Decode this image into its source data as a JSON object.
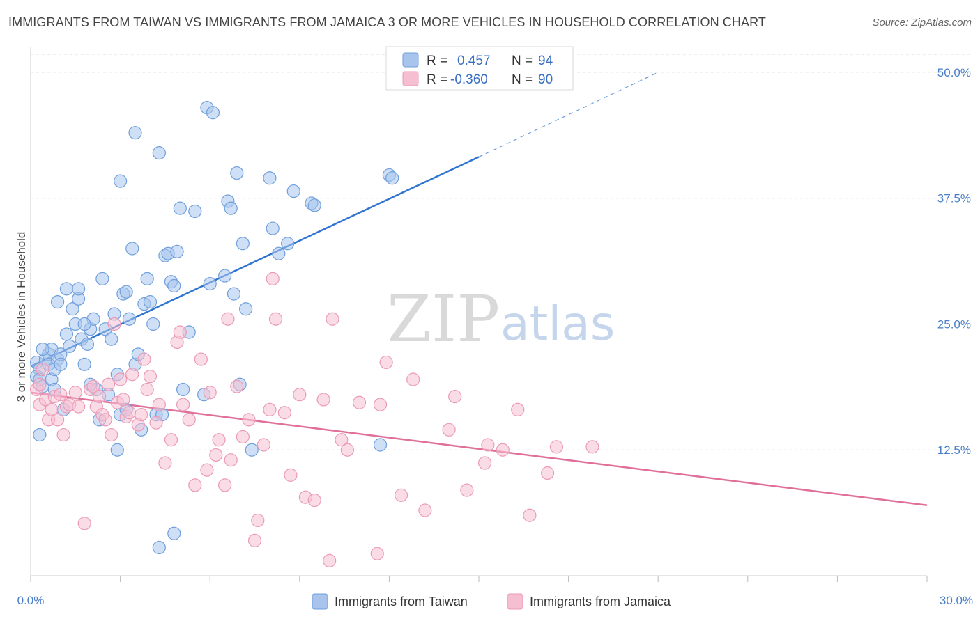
{
  "title": "IMMIGRANTS FROM TAIWAN VS IMMIGRANTS FROM JAMAICA 3 OR MORE VEHICLES IN HOUSEHOLD CORRELATION CHART",
  "source": "Source: ZipAtlas.com",
  "watermark": {
    "zip": "ZIP",
    "atlas": "atlas"
  },
  "legend": {
    "rows": [
      {
        "r_label": "R =",
        "r_value": "0.457",
        "n_label": "N =",
        "n_value": "94"
      },
      {
        "r_label": "R =",
        "r_value": "-0.360",
        "n_label": "N =",
        "n_value": "90"
      }
    ]
  },
  "colors": {
    "taiwan_fill": "#a8c4ec",
    "taiwan_stroke": "#6f9fdc",
    "taiwan_line": "#2f74d0",
    "jamaica_fill": "#f6bfd1",
    "jamaica_stroke": "#eb9ab6",
    "jamaica_line": "#e0709a",
    "grid": "#dcdcdc",
    "axis_text": "#4a7ec9"
  },
  "chart_data": {
    "type": "scatter",
    "title": "IMMIGRANTS FROM TAIWAN VS IMMIGRANTS FROM JAMAICA 3 OR MORE VEHICLES IN HOUSEHOLD CORRELATION CHART",
    "xlabel": "",
    "ylabel": "3 or more Vehicles in Household",
    "xlim": [
      0,
      30
    ],
    "ylim": [
      0,
      52
    ],
    "x_tick_labels": [
      "0.0%",
      "30.0%"
    ],
    "y_ticks": [
      12.5,
      25.0,
      37.5,
      50.0
    ],
    "y_tick_labels": [
      "12.5%",
      "25.0%",
      "37.5%",
      "50.0%"
    ],
    "grid": "horizontal dashed",
    "legend_position": "top-center",
    "series": [
      {
        "name": "Immigrants from Taiwan",
        "r": 0.457,
        "n": 94,
        "trend": {
          "x": [
            0.0,
            15.0
          ],
          "y": [
            20.8,
            41.6
          ],
          "dashed_to": [
            21.0,
            50.0
          ]
        },
        "points": [
          [
            0.2,
            21.2
          ],
          [
            0.3,
            20.5
          ],
          [
            0.2,
            19.8
          ],
          [
            0.3,
            19.5
          ],
          [
            0.4,
            18.8
          ],
          [
            0.3,
            14.0
          ],
          [
            0.5,
            21.5
          ],
          [
            0.6,
            22.0
          ],
          [
            0.7,
            22.5
          ],
          [
            0.6,
            21.0
          ],
          [
            0.7,
            19.5
          ],
          [
            0.8,
            18.5
          ],
          [
            0.9,
            21.5
          ],
          [
            0.8,
            20.5
          ],
          [
            1.0,
            22.0
          ],
          [
            1.0,
            21.0
          ],
          [
            1.1,
            16.5
          ],
          [
            1.2,
            24.0
          ],
          [
            1.3,
            22.8
          ],
          [
            1.4,
            26.5
          ],
          [
            1.5,
            25.0
          ],
          [
            1.6,
            27.5
          ],
          [
            1.7,
            23.5
          ],
          [
            1.8,
            21.0
          ],
          [
            1.9,
            23.0
          ],
          [
            2.0,
            24.5
          ],
          [
            2.1,
            25.5
          ],
          [
            2.2,
            18.5
          ],
          [
            2.3,
            15.5
          ],
          [
            2.4,
            29.5
          ],
          [
            2.5,
            24.5
          ],
          [
            2.6,
            18.0
          ],
          [
            2.7,
            23.5
          ],
          [
            2.8,
            26.0
          ],
          [
            2.9,
            20.0
          ],
          [
            3.0,
            16.0
          ],
          [
            3.1,
            28.0
          ],
          [
            3.2,
            28.2
          ],
          [
            3.3,
            25.5
          ],
          [
            3.4,
            32.5
          ],
          [
            3.5,
            21.0
          ],
          [
            3.6,
            22.0
          ],
          [
            3.7,
            14.5
          ],
          [
            3.8,
            27.0
          ],
          [
            3.9,
            29.5
          ],
          [
            4.0,
            27.2
          ],
          [
            4.1,
            25.0
          ],
          [
            4.2,
            16.0
          ],
          [
            4.3,
            42.0
          ],
          [
            4.4,
            16.0
          ],
          [
            4.5,
            31.8
          ],
          [
            4.6,
            32.0
          ],
          [
            4.7,
            29.2
          ],
          [
            4.8,
            28.8
          ],
          [
            4.9,
            32.2
          ],
          [
            5.0,
            36.5
          ],
          [
            5.1,
            18.5
          ],
          [
            5.3,
            24.2
          ],
          [
            5.5,
            36.2
          ],
          [
            5.9,
            46.5
          ],
          [
            6.0,
            29.0
          ],
          [
            6.1,
            46.0
          ],
          [
            6.5,
            29.8
          ],
          [
            6.6,
            37.2
          ],
          [
            6.7,
            36.5
          ],
          [
            6.8,
            28.0
          ],
          [
            6.9,
            40.0
          ],
          [
            7.0,
            19.0
          ],
          [
            7.1,
            33.0
          ],
          [
            7.2,
            26.5
          ],
          [
            7.4,
            12.5
          ],
          [
            8.0,
            39.5
          ],
          [
            8.1,
            34.5
          ],
          [
            8.3,
            32.0
          ],
          [
            8.6,
            33.0
          ],
          [
            8.8,
            38.2
          ],
          [
            9.4,
            37.0
          ],
          [
            9.5,
            36.8
          ],
          [
            11.7,
            13.0
          ],
          [
            12.0,
            39.8
          ],
          [
            12.1,
            39.5
          ],
          [
            3.0,
            39.2
          ],
          [
            3.5,
            44.0
          ],
          [
            2.9,
            12.5
          ],
          [
            4.3,
            2.8
          ],
          [
            4.8,
            4.2
          ],
          [
            0.9,
            27.2
          ],
          [
            1.2,
            28.5
          ],
          [
            1.6,
            28.5
          ],
          [
            3.2,
            16.5
          ],
          [
            5.8,
            18.0
          ],
          [
            2.0,
            19.0
          ],
          [
            0.4,
            22.5
          ],
          [
            1.8,
            25.0
          ]
        ]
      },
      {
        "name": "Immigrants from Jamaica",
        "r": -0.36,
        "n": 90,
        "trend": {
          "x": [
            0.0,
            30.0
          ],
          "y": [
            18.2,
            7.0
          ]
        },
        "points": [
          [
            0.2,
            18.5
          ],
          [
            0.3,
            17.0
          ],
          [
            0.3,
            19.0
          ],
          [
            0.4,
            20.5
          ],
          [
            0.5,
            17.5
          ],
          [
            0.6,
            15.5
          ],
          [
            0.7,
            16.5
          ],
          [
            0.8,
            17.8
          ],
          [
            0.9,
            15.5
          ],
          [
            1.0,
            18.0
          ],
          [
            1.1,
            14.0
          ],
          [
            1.2,
            16.8
          ],
          [
            1.3,
            17.0
          ],
          [
            1.5,
            18.2
          ],
          [
            1.6,
            16.8
          ],
          [
            1.8,
            5.2
          ],
          [
            2.0,
            18.5
          ],
          [
            2.1,
            18.8
          ],
          [
            2.2,
            16.8
          ],
          [
            2.3,
            17.8
          ],
          [
            2.4,
            16.0
          ],
          [
            2.5,
            15.5
          ],
          [
            2.6,
            19.0
          ],
          [
            2.7,
            14.0
          ],
          [
            2.8,
            25.0
          ],
          [
            2.9,
            17.2
          ],
          [
            3.0,
            19.5
          ],
          [
            3.1,
            17.5
          ],
          [
            3.2,
            15.8
          ],
          [
            3.3,
            16.2
          ],
          [
            3.4,
            20.0
          ],
          [
            3.6,
            15.0
          ],
          [
            3.7,
            16.0
          ],
          [
            3.8,
            21.5
          ],
          [
            3.9,
            18.5
          ],
          [
            4.0,
            19.8
          ],
          [
            4.2,
            15.2
          ],
          [
            4.3,
            17.0
          ],
          [
            4.5,
            11.2
          ],
          [
            4.7,
            13.5
          ],
          [
            4.9,
            23.2
          ],
          [
            5.0,
            24.2
          ],
          [
            5.1,
            17.0
          ],
          [
            5.3,
            15.5
          ],
          [
            5.5,
            9.0
          ],
          [
            5.7,
            21.5
          ],
          [
            5.9,
            10.5
          ],
          [
            6.0,
            18.2
          ],
          [
            6.2,
            12.0
          ],
          [
            6.3,
            13.5
          ],
          [
            6.5,
            9.0
          ],
          [
            6.6,
            25.5
          ],
          [
            6.7,
            11.5
          ],
          [
            6.9,
            18.8
          ],
          [
            7.1,
            13.8
          ],
          [
            7.3,
            15.5
          ],
          [
            7.5,
            3.5
          ],
          [
            7.6,
            5.5
          ],
          [
            7.8,
            13.0
          ],
          [
            8.0,
            16.5
          ],
          [
            8.1,
            29.5
          ],
          [
            8.2,
            25.5
          ],
          [
            8.5,
            16.2
          ],
          [
            8.7,
            10.0
          ],
          [
            9.0,
            18.0
          ],
          [
            9.2,
            7.8
          ],
          [
            9.5,
            7.5
          ],
          [
            9.8,
            17.5
          ],
          [
            10.0,
            1.5
          ],
          [
            10.1,
            25.5
          ],
          [
            10.4,
            13.5
          ],
          [
            10.6,
            12.5
          ],
          [
            11.0,
            17.2
          ],
          [
            11.6,
            2.2
          ],
          [
            11.7,
            17.0
          ],
          [
            11.9,
            21.2
          ],
          [
            12.4,
            8.0
          ],
          [
            12.8,
            19.5
          ],
          [
            13.2,
            6.5
          ],
          [
            14.0,
            14.5
          ],
          [
            14.2,
            17.8
          ],
          [
            14.6,
            8.5
          ],
          [
            15.2,
            11.2
          ],
          [
            15.3,
            13.0
          ],
          [
            15.8,
            12.5
          ],
          [
            16.3,
            16.5
          ],
          [
            16.7,
            6.0
          ],
          [
            17.3,
            10.2
          ],
          [
            17.6,
            12.8
          ],
          [
            18.8,
            12.8
          ]
        ]
      }
    ]
  },
  "bottom_legend": [
    {
      "label": "Immigrants from Taiwan"
    },
    {
      "label": "Immigrants from Jamaica"
    }
  ]
}
